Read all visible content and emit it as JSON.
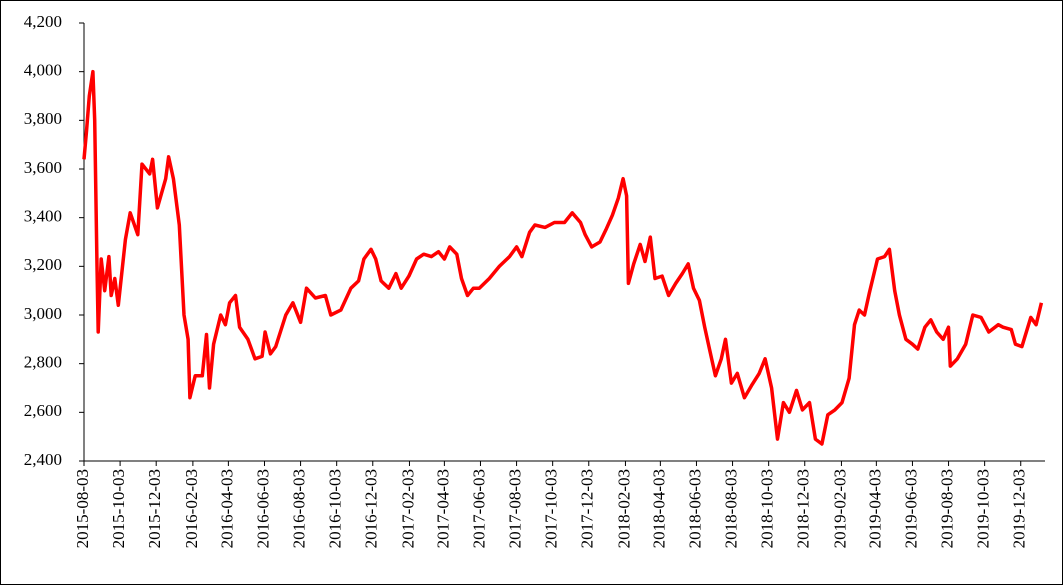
{
  "chart_data": {
    "type": "line",
    "x": [
      "2015-08-03",
      "2015-08-07",
      "2015-08-12",
      "2015-08-18",
      "2015-08-21",
      "2015-08-25",
      "2015-08-27",
      "2015-09-01",
      "2015-09-07",
      "2015-09-14",
      "2015-09-18",
      "2015-09-24",
      "2015-09-30",
      "2015-10-12",
      "2015-10-20",
      "2015-11-02",
      "2015-11-09",
      "2015-11-22",
      "2015-11-27",
      "2015-12-05",
      "2015-12-19",
      "2015-12-24",
      "2016-01-01",
      "2016-01-11",
      "2016-01-19",
      "2016-01-26",
      "2016-01-29",
      "2016-02-07",
      "2016-02-19",
      "2016-02-26",
      "2016-03-02",
      "2016-03-09",
      "2016-03-21",
      "2016-03-29",
      "2016-04-05",
      "2016-04-15",
      "2016-04-22",
      "2016-05-06",
      "2016-05-18",
      "2016-05-30",
      "2016-06-04",
      "2016-06-13",
      "2016-06-22",
      "2016-07-09",
      "2016-07-21",
      "2016-08-03",
      "2016-08-13",
      "2016-08-28",
      "2016-09-14",
      "2016-09-23",
      "2016-10-10",
      "2016-10-27",
      "2016-11-09",
      "2016-11-18",
      "2016-11-30",
      "2016-12-08",
      "2016-12-17",
      "2016-12-30",
      "2017-01-11",
      "2017-01-20",
      "2017-02-02",
      "2017-02-15",
      "2017-02-27",
      "2017-03-12",
      "2017-03-24",
      "2017-04-03",
      "2017-04-12",
      "2017-04-24",
      "2017-05-02",
      "2017-05-12",
      "2017-05-22",
      "2017-06-01",
      "2017-06-18",
      "2017-07-05",
      "2017-07-22",
      "2017-08-03",
      "2017-08-12",
      "2017-08-25",
      "2017-09-03",
      "2017-09-20",
      "2017-10-06",
      "2017-10-23",
      "2017-11-05",
      "2017-11-19",
      "2017-11-27",
      "2017-12-08",
      "2017-12-22",
      "2018-01-01",
      "2018-01-12",
      "2018-01-22",
      "2018-01-30",
      "2018-02-05",
      "2018-02-08",
      "2018-02-17",
      "2018-02-28",
      "2018-03-08",
      "2018-03-17",
      "2018-03-25",
      "2018-04-06",
      "2018-04-17",
      "2018-04-29",
      "2018-05-10",
      "2018-05-20",
      "2018-05-29",
      "2018-06-08",
      "2018-06-17",
      "2018-06-25",
      "2018-07-05",
      "2018-07-15",
      "2018-07-22",
      "2018-08-01",
      "2018-08-11",
      "2018-08-23",
      "2018-09-04",
      "2018-09-17",
      "2018-09-27",
      "2018-10-08",
      "2018-10-18",
      "2018-10-28",
      "2018-11-07",
      "2018-11-19",
      "2018-11-29",
      "2018-12-11",
      "2018-12-21",
      "2019-01-01",
      "2019-01-11",
      "2019-01-23",
      "2019-02-04",
      "2019-02-16",
      "2019-02-25",
      "2019-03-05",
      "2019-03-14",
      "2019-03-22",
      "2019-04-05",
      "2019-04-17",
      "2019-04-25",
      "2019-05-04",
      "2019-05-12",
      "2019-05-23",
      "2019-06-03",
      "2019-06-12",
      "2019-06-24",
      "2019-07-04",
      "2019-07-14",
      "2019-07-25",
      "2019-08-03",
      "2019-08-06",
      "2019-08-18",
      "2019-09-01",
      "2019-09-13",
      "2019-09-27",
      "2019-10-10",
      "2019-10-26",
      "2019-11-03",
      "2019-11-17",
      "2019-11-24",
      "2019-12-05",
      "2019-12-20",
      "2019-12-29",
      "2020-01-07"
    ],
    "values": [
      3640,
      3750,
      3900,
      4000,
      3800,
      3200,
      2930,
      3230,
      3100,
      3240,
      3080,
      3150,
      3040,
      3310,
      3420,
      3330,
      3620,
      3580,
      3640,
      3440,
      3560,
      3650,
      3560,
      3370,
      3000,
      2900,
      2660,
      2750,
      2750,
      2920,
      2700,
      2880,
      3000,
      2960,
      3050,
      3080,
      2950,
      2900,
      2820,
      2830,
      2930,
      2840,
      2870,
      3000,
      3050,
      2970,
      3110,
      3070,
      3080,
      3000,
      3020,
      3110,
      3140,
      3230,
      3270,
      3230,
      3140,
      3110,
      3170,
      3110,
      3160,
      3230,
      3250,
      3240,
      3260,
      3230,
      3280,
      3250,
      3150,
      3080,
      3110,
      3110,
      3150,
      3200,
      3240,
      3280,
      3240,
      3340,
      3370,
      3360,
      3380,
      3380,
      3420,
      3380,
      3330,
      3280,
      3300,
      3350,
      3410,
      3480,
      3560,
      3490,
      3130,
      3210,
      3290,
      3220,
      3320,
      3150,
      3160,
      3080,
      3130,
      3170,
      3210,
      3110,
      3060,
      2950,
      2860,
      2750,
      2820,
      2900,
      2720,
      2760,
      2660,
      2710,
      2760,
      2820,
      2700,
      2490,
      2640,
      2600,
      2690,
      2610,
      2640,
      2490,
      2470,
      2590,
      2610,
      2640,
      2740,
      2960,
      3020,
      3000,
      3090,
      3230,
      3240,
      3270,
      3100,
      3000,
      2900,
      2880,
      2860,
      2950,
      2980,
      2930,
      2900,
      2950,
      2790,
      2820,
      2880,
      3000,
      2990,
      2930,
      2960,
      2950,
      2940,
      2880,
      2870,
      2990,
      2960,
      3050
    ],
    "color": "#ff0000",
    "xlim": [
      "2015-08-03",
      "2020-01-13"
    ],
    "xticks": [
      "2015-08-03",
      "2015-10-03",
      "2015-12-03",
      "2016-02-03",
      "2016-04-03",
      "2016-06-03",
      "2016-08-03",
      "2016-10-03",
      "2016-12-03",
      "2017-02-03",
      "2017-04-03",
      "2017-06-03",
      "2017-08-03",
      "2017-10-03",
      "2017-12-03",
      "2018-02-03",
      "2018-04-03",
      "2018-06-03",
      "2018-08-03",
      "2018-10-03",
      "2018-12-03",
      "2019-02-03",
      "2019-04-03",
      "2019-06-03",
      "2019-08-03",
      "2019-10-03",
      "2019-12-03"
    ],
    "ylim": [
      2400,
      4200
    ],
    "yticks": [
      {
        "value": 2400,
        "label": "2,400"
      },
      {
        "value": 2600,
        "label": "2,600"
      },
      {
        "value": 2800,
        "label": "2,800"
      },
      {
        "value": 3000,
        "label": "3,000"
      },
      {
        "value": 3200,
        "label": "3,200"
      },
      {
        "value": 3400,
        "label": "3,400"
      },
      {
        "value": 3600,
        "label": "3,600"
      },
      {
        "value": 3800,
        "label": "3,800"
      },
      {
        "value": 4000,
        "label": "4,000"
      },
      {
        "value": 4200,
        "label": "4,200"
      }
    ],
    "grid": false
  }
}
